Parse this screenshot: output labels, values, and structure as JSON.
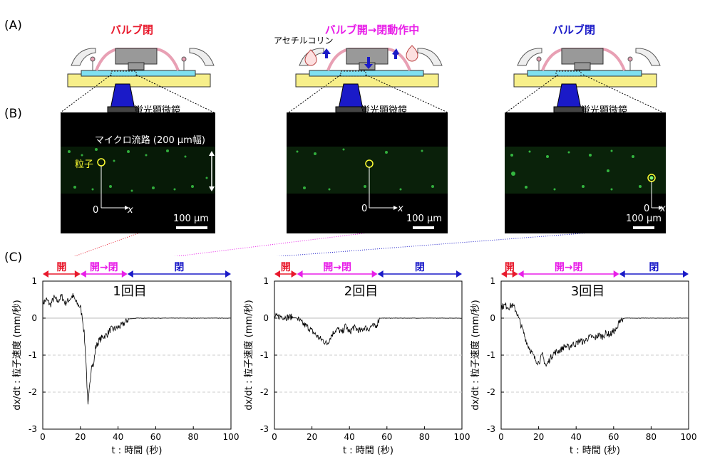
{
  "panels": {
    "a": "(A)",
    "b": "(B)",
    "c": "(C)"
  },
  "states": [
    {
      "title": "バルブ閉",
      "color": "#e8192c"
    },
    {
      "title": "バルブ開→閉動作中",
      "color": "#e81ee8"
    },
    {
      "title": "バルブ閉",
      "color": "#1a1ac8"
    }
  ],
  "acetylcholine": "アセチルコリン",
  "microscope": "蛍光顕微鏡",
  "micrographs": [
    {
      "channel_label": "マイクロ流路 (200 µm幅)",
      "particle_label": "粒子",
      "origin": "0",
      "x_label": "x",
      "scale": "100 µm"
    },
    {
      "channel_label": "",
      "particle_label": "",
      "origin": "0",
      "x_label": "x",
      "scale": "100 µm"
    },
    {
      "channel_label": "",
      "particle_label": "",
      "origin": "0",
      "x_label": "x",
      "scale": "100 µm"
    }
  ],
  "colors": {
    "open": "#e8192c",
    "transition": "#e81ee8",
    "closed": "#1a1ac8",
    "device_yellow": "#f7ef8a",
    "membrane_pink": "#e8a0b4",
    "channel_cyan": "#7fe0f0"
  },
  "phase_labels": {
    "open": "開",
    "transition": "開→閉",
    "closed": "閉"
  },
  "axes": {
    "ylabel": "dx/dt : 粒子速度 (mm/秒)",
    "xlabel": "t : 時間 (秒)",
    "yticks": [
      "1",
      "0",
      "-1",
      "-2",
      "-3"
    ],
    "xticks": [
      "0",
      "20",
      "40",
      "60",
      "80",
      "100"
    ]
  },
  "chart_data": [
    {
      "type": "line",
      "title": "1回目",
      "xlabel": "t : 時間 (秒)",
      "ylabel": "dx/dt : 粒子速度 (mm/秒)",
      "xlim": [
        0,
        100
      ],
      "ylim": [
        -3,
        1
      ],
      "phases": {
        "open": [
          0,
          20
        ],
        "transition": [
          20,
          45
        ],
        "closed": [
          45,
          100
        ]
      },
      "series": [
        {
          "x": [
            0,
            2,
            4,
            6,
            8,
            10,
            12,
            14,
            16,
            18,
            20,
            21,
            22,
            23,
            24,
            25,
            26,
            27,
            28,
            30,
            32,
            34,
            36,
            38,
            40,
            42,
            44,
            46,
            50,
            60,
            70,
            80,
            90,
            100
          ],
          "y": [
            0.4,
            0.5,
            0.35,
            0.55,
            0.45,
            0.6,
            0.4,
            0.5,
            0.6,
            0.4,
            0.3,
            0.0,
            -0.4,
            -1.2,
            -2.4,
            -1.8,
            -1.2,
            -1.3,
            -0.8,
            -0.6,
            -0.5,
            -0.45,
            -0.3,
            -0.3,
            -0.25,
            -0.2,
            -0.1,
            -0.02,
            0.0,
            0.0,
            0.0,
            0.0,
            0.0,
            0.0
          ]
        }
      ]
    },
    {
      "type": "line",
      "title": "2回目",
      "xlabel": "t : 時間 (秒)",
      "ylabel": "dx/dt : 粒子速度 (mm/秒)",
      "xlim": [
        0,
        100
      ],
      "ylim": [
        -3,
        1
      ],
      "phases": {
        "open": [
          0,
          12
        ],
        "transition": [
          12,
          55
        ],
        "closed": [
          55,
          100
        ]
      },
      "series": [
        {
          "x": [
            0,
            3,
            6,
            9,
            12,
            15,
            18,
            20,
            22,
            24,
            26,
            28,
            30,
            32,
            34,
            36,
            38,
            40,
            42,
            44,
            46,
            48,
            50,
            52,
            54,
            56,
            60,
            70,
            80,
            90,
            100
          ],
          "y": [
            0.03,
            0.05,
            0.02,
            0.03,
            0.0,
            -0.15,
            -0.25,
            -0.35,
            -0.45,
            -0.55,
            -0.6,
            -0.7,
            -0.5,
            -0.35,
            -0.3,
            -0.4,
            -0.2,
            -0.4,
            -0.25,
            -0.3,
            -0.35,
            -0.25,
            -0.3,
            -0.2,
            -0.25,
            0.0,
            0.0,
            0.0,
            0.0,
            0.0,
            0.0
          ]
        }
      ]
    },
    {
      "type": "line",
      "title": "3回目",
      "xlabel": "t : 時間 (秒)",
      "ylabel": "dx/dt : 粒子速度 (mm/秒)",
      "xlim": [
        0,
        100
      ],
      "ylim": [
        -3,
        1
      ],
      "phases": {
        "open": [
          0,
          9
        ],
        "transition": [
          9,
          63
        ],
        "closed": [
          63,
          100
        ]
      },
      "series": [
        {
          "x": [
            0,
            2,
            4,
            6,
            8,
            10,
            12,
            14,
            16,
            18,
            20,
            22,
            24,
            26,
            28,
            30,
            32,
            34,
            36,
            38,
            40,
            42,
            44,
            46,
            48,
            50,
            52,
            54,
            56,
            58,
            60,
            62,
            63,
            66,
            70,
            80,
            90,
            100
          ],
          "y": [
            0.3,
            0.35,
            0.3,
            0.35,
            0.2,
            -0.1,
            -0.4,
            -0.7,
            -0.9,
            -1.1,
            -1.2,
            -1.0,
            -1.3,
            -1.1,
            -0.95,
            -0.9,
            -0.85,
            -0.75,
            -0.8,
            -0.7,
            -0.7,
            -0.6,
            -0.65,
            -0.55,
            -0.5,
            -0.55,
            -0.45,
            -0.5,
            -0.4,
            -0.45,
            -0.35,
            -0.3,
            -0.05,
            0.0,
            0.0,
            0.0,
            0.0,
            0.0
          ]
        }
      ]
    }
  ]
}
